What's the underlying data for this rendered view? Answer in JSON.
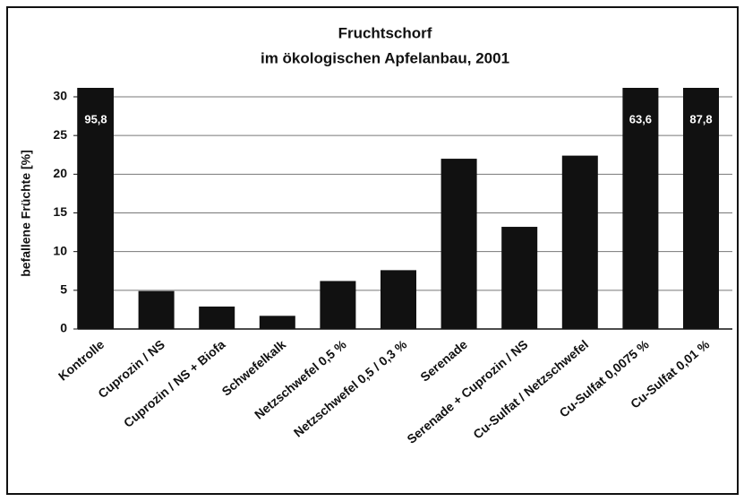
{
  "chart_data": {
    "type": "bar",
    "title": [
      "Fruchtschorf",
      "im ökologischen Apfelanbau, 2001"
    ],
    "ylabel": "befallene Früchte [%]",
    "categories": [
      "Kontrolle",
      "Cuprozin / NS",
      "Cuprozin / NS + Biofa",
      "Schwefelkalk",
      "Netzschwefel 0,5 %",
      "Netzschwefel 0,5 / 0,3 %",
      "Serenade",
      "Serenade + Cuprozin / NS",
      "Cu-Sulfat / Netzschwefel",
      "Cu-Sulfat 0,0075 %",
      "Cu-Sulfat 0,01 %"
    ],
    "values": [
      95.8,
      4.9,
      2.9,
      1.7,
      6.2,
      7.6,
      22,
      13.2,
      22.4,
      63.6,
      87.8
    ],
    "value_labels": [
      "95,8",
      null,
      null,
      null,
      null,
      null,
      null,
      null,
      null,
      "63,6",
      "87,8"
    ],
    "color": "#111111",
    "ylim": [
      0,
      30
    ],
    "yticks": [
      0,
      5,
      10,
      15,
      20,
      25,
      30
    ],
    "grid": true
  }
}
